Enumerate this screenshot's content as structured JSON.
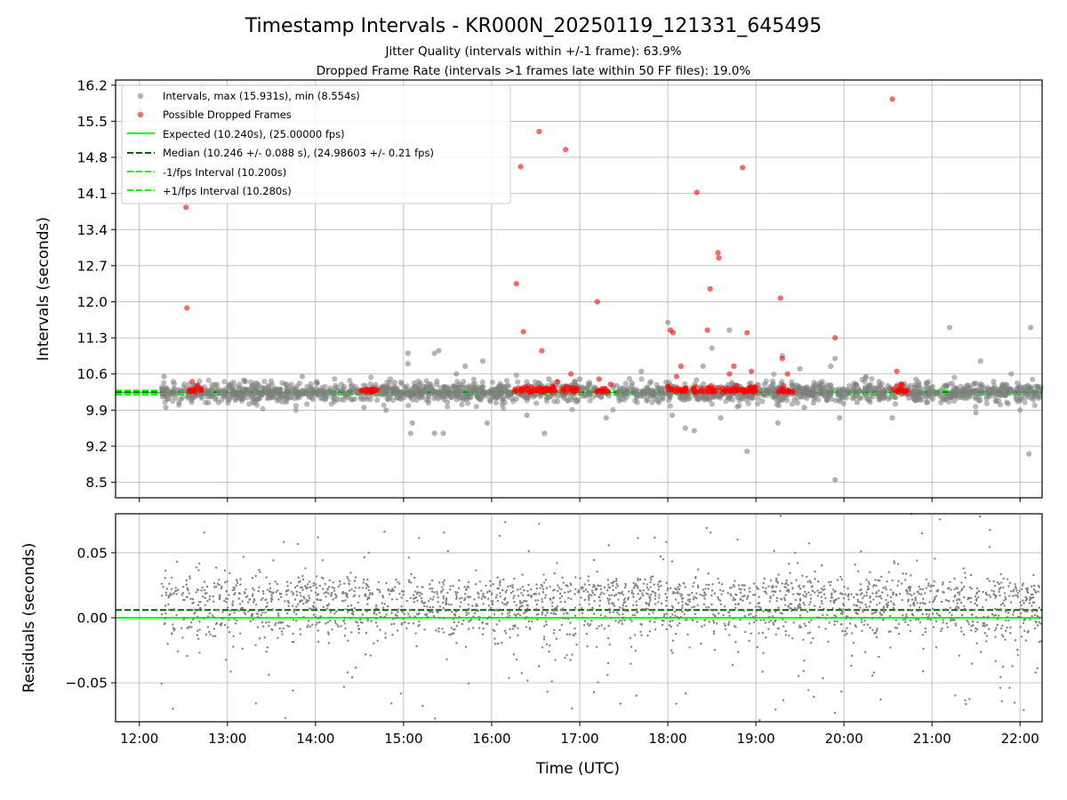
{
  "chart_data": [
    {
      "type": "scatter",
      "title": "Timestamp Intervals - KR000N_20250119_121331_645495",
      "subtitle_1": "Jitter Quality (intervals within +/-1 frame): 63.9%",
      "subtitle_2": "Dropped Frame Rate (intervals >1 frames late within 50 FF files): 19.0%",
      "xlabel": "",
      "ylabel": "Intervals (seconds)",
      "x_range_hours": [
        11.73,
        22.25
      ],
      "ylim": [
        8.2,
        16.3
      ],
      "y_ticks": [
        8.5,
        9.2,
        9.9,
        10.6,
        11.3,
        12.0,
        12.7,
        13.4,
        14.1,
        14.8,
        15.5,
        16.2
      ],
      "y_tick_labels": [
        "8.5",
        "9.2",
        "9.9",
        "10.6",
        "11.3",
        "12.0",
        "12.7",
        "13.4",
        "14.1",
        "14.8",
        "15.5",
        "16.2"
      ],
      "grid": true,
      "legend_position": "upper-left",
      "legend": [
        "Intervals, max (15.931s), min (8.554s)",
        "Possible Dropped Frames",
        "Expected (10.240s), (25.00000 fps)",
        "Median (10.246 +/- 0.088 s), (24.98603 +/- 0.21 fps)",
        "-1/fps Interval (10.200s)",
        "+1/fps Interval (10.280s)"
      ],
      "reference_lines": {
        "expected": 10.24,
        "median": 10.246,
        "minus_1_fps": 10.2,
        "plus_1_fps": 10.28
      },
      "series": [
        {
          "name": "Intervals, max (15.931s), min (8.554s)",
          "color": "#808080",
          "points": [
            [
              12.28,
              10.55
            ],
            [
              12.3,
              9.95
            ],
            [
              12.45,
              10.05
            ],
            [
              12.65,
              10.35
            ],
            [
              12.9,
              10.05
            ],
            [
              13.2,
              10.45
            ],
            [
              13.6,
              10.3
            ],
            [
              13.85,
              10.55
            ],
            [
              14.1,
              10.2
            ],
            [
              14.3,
              10.3
            ],
            [
              14.55,
              9.95
            ],
            [
              14.8,
              9.9
            ],
            [
              14.85,
              10.5
            ],
            [
              15.05,
              11.0
            ],
            [
              15.08,
              9.45
            ],
            [
              15.1,
              9.65
            ],
            [
              15.05,
              10.8
            ],
            [
              15.35,
              11.0
            ],
            [
              15.4,
              11.05
            ],
            [
              15.35,
              9.45
            ],
            [
              15.45,
              9.45
            ],
            [
              15.5,
              10.3
            ],
            [
              15.6,
              10.6
            ],
            [
              15.7,
              10.75
            ],
            [
              15.9,
              10.85
            ],
            [
              15.95,
              9.65
            ],
            [
              16.15,
              10.35
            ],
            [
              16.4,
              9.8
            ],
            [
              16.45,
              10.2
            ],
            [
              16.6,
              9.45
            ],
            [
              16.65,
              10.5
            ],
            [
              17.0,
              10.5
            ],
            [
              17.3,
              9.75
            ],
            [
              17.5,
              10.3
            ],
            [
              17.7,
              10.65
            ],
            [
              17.9,
              10.05
            ],
            [
              18.0,
              11.6
            ],
            [
              18.05,
              9.8
            ],
            [
              18.2,
              9.55
            ],
            [
              18.3,
              9.5
            ],
            [
              18.4,
              10.75
            ],
            [
              18.5,
              11.1
            ],
            [
              18.6,
              9.75
            ],
            [
              18.7,
              11.45
            ],
            [
              18.85,
              10.15
            ],
            [
              18.9,
              9.1
            ],
            [
              19.1,
              10.4
            ],
            [
              19.25,
              9.65
            ],
            [
              19.3,
              10.95
            ],
            [
              19.5,
              10.7
            ],
            [
              19.55,
              9.95
            ],
            [
              19.75,
              10.4
            ],
            [
              19.85,
              10.75
            ],
            [
              19.9,
              10.9
            ],
            [
              19.9,
              8.55
            ],
            [
              19.95,
              9.75
            ],
            [
              20.15,
              10.05
            ],
            [
              20.25,
              10.55
            ],
            [
              20.4,
              10.45
            ],
            [
              20.55,
              9.75
            ],
            [
              20.8,
              10.25
            ],
            [
              20.95,
              10.05
            ],
            [
              21.2,
              11.5
            ],
            [
              21.35,
              10.3
            ],
            [
              21.5,
              9.85
            ],
            [
              21.55,
              10.85
            ],
            [
              21.7,
              10.45
            ],
            [
              21.85,
              10.05
            ],
            [
              21.9,
              10.6
            ],
            [
              22.0,
              9.9
            ],
            [
              22.05,
              10.35
            ],
            [
              22.1,
              9.05
            ],
            [
              22.12,
              11.5
            ],
            [
              22.15,
              10.1
            ],
            [
              22.2,
              10.35
            ]
          ]
        },
        {
          "name": "Possible Dropped Frames",
          "color": "#ff0000",
          "points": [
            [
              12.53,
              13.83
            ],
            [
              12.54,
              11.88
            ],
            [
              12.6,
              10.45
            ],
            [
              12.7,
              10.3
            ],
            [
              14.58,
              10.3
            ],
            [
              14.65,
              10.3
            ],
            [
              16.28,
              12.35
            ],
            [
              16.33,
              14.62
            ],
            [
              16.36,
              11.42
            ],
            [
              16.45,
              10.35
            ],
            [
              16.54,
              15.3
            ],
            [
              16.57,
              11.05
            ],
            [
              16.75,
              10.45
            ],
            [
              16.84,
              14.95
            ],
            [
              16.9,
              10.6
            ],
            [
              17.2,
              12.0
            ],
            [
              17.22,
              10.5
            ],
            [
              17.35,
              10.4
            ],
            [
              18.03,
              11.45
            ],
            [
              18.06,
              11.4
            ],
            [
              18.1,
              10.55
            ],
            [
              18.15,
              10.75
            ],
            [
              18.33,
              14.12
            ],
            [
              18.45,
              11.45
            ],
            [
              18.48,
              12.25
            ],
            [
              18.57,
              12.95
            ],
            [
              18.58,
              12.85
            ],
            [
              18.7,
              10.6
            ],
            [
              18.75,
              10.75
            ],
            [
              18.85,
              14.6
            ],
            [
              18.9,
              11.4
            ],
            [
              18.95,
              10.65
            ],
            [
              19.28,
              12.07
            ],
            [
              19.3,
              10.9
            ],
            [
              19.36,
              10.6
            ],
            [
              19.9,
              11.3
            ],
            [
              20.55,
              15.93
            ],
            [
              20.6,
              10.65
            ],
            [
              20.65,
              10.4
            ]
          ]
        }
      ]
    },
    {
      "type": "scatter",
      "title": "",
      "xlabel": "Time (UTC)",
      "ylabel": "Residuals (seconds)",
      "x_range_hours": [
        11.73,
        22.25
      ],
      "ylim": [
        -0.08,
        0.08
      ],
      "y_ticks": [
        -0.05,
        0.0,
        0.05
      ],
      "y_tick_labels": [
        "−0.05",
        "0.00",
        "0.05"
      ],
      "x_ticks": [
        12,
        13,
        14,
        15,
        16,
        17,
        18,
        19,
        20,
        21,
        22
      ],
      "x_tick_labels": [
        "12:00",
        "13:00",
        "14:00",
        "15:00",
        "16:00",
        "17:00",
        "18:00",
        "19:00",
        "20:00",
        "21:00",
        "22:00"
      ],
      "grid": true,
      "reference_lines": {
        "expected": 0.0,
        "median": 0.006
      },
      "series": [
        {
          "name": "Residuals",
          "color": "#808080",
          "bands": [
            {
              "center": 0.02,
              "spread": 0.006,
              "weight": 0.45
            },
            {
              "center": 0.001,
              "spread": 0.009,
              "weight": 0.4
            },
            {
              "center": 0.0,
              "spread": 0.045,
              "weight": 0.15
            }
          ],
          "x_start": 12.25,
          "x_end": 22.24,
          "count": 2400
        }
      ]
    }
  ]
}
